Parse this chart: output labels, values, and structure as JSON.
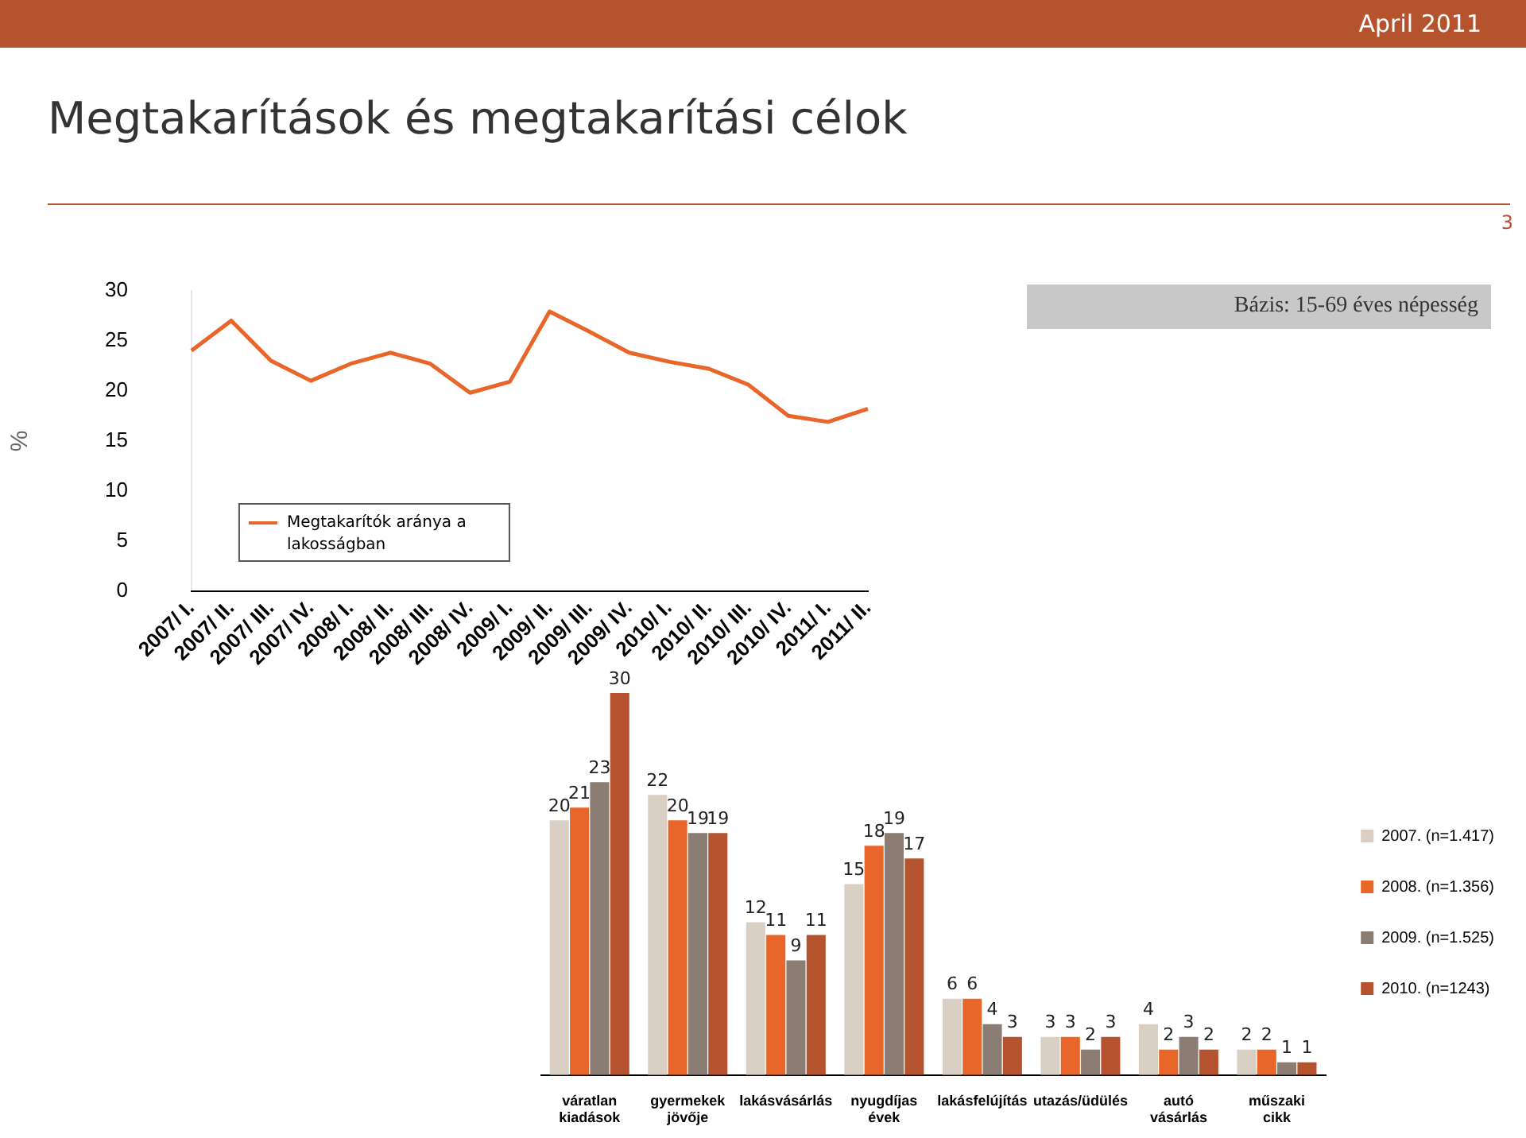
{
  "chart_data": [
    {
      "type": "line",
      "title": "Megtakarítások és megtakarítási célok",
      "ylabel": "%",
      "categories": [
        "2007/ I.",
        "2007/ II.",
        "2007/ III.",
        "2007/ IV.",
        "2008/ I.",
        "2008/ II.",
        "2008/ III.",
        "2008/ IV.",
        "2009/ I.",
        "2009/ II.",
        "2009/ III.",
        "2009/ IV.",
        "2010/ I.",
        "2010/ II.",
        "2010/ III.",
        "2010/ IV.",
        "2011/ I.",
        "2011/ II."
      ],
      "series": [
        {
          "name": "Megtakarítók aránya a lakosságban",
          "color": "#e8662a",
          "values": [
            24,
            27,
            23,
            21,
            22.7,
            23.8,
            22.7,
            19.8,
            20.9,
            27.9,
            25.9,
            23.8,
            22.9,
            22.2,
            20.6,
            17.5,
            16.9,
            18.2
          ]
        }
      ],
      "ylim": [
        0,
        30
      ],
      "yticks": [
        0,
        5,
        10,
        15,
        20,
        25,
        30
      ],
      "grid": false,
      "legend": "bottom left",
      "marker": "none",
      "line_style": "solid",
      "annotations": [
        "Bázis: 15-69 éves népesség",
        "April 2011",
        "3"
      ]
    },
    {
      "type": "bar",
      "categories": [
        "váratlan kiadások",
        "gyermekek jövője",
        "lakásvásárlás",
        "nyugdíjas évek",
        "lakásfelújítás",
        "utazás/üdülés",
        "autó vásárlás",
        "műszaki cikk"
      ],
      "series": [
        {
          "name": "2007. (n=1.417)",
          "color": "#d9cfc4",
          "values": [
            20,
            22,
            12,
            15,
            6,
            3,
            4,
            2
          ]
        },
        {
          "name": "2008. (n=1.356)",
          "color": "#e8662a",
          "values": [
            21,
            20,
            11,
            18,
            6,
            3,
            2,
            2
          ]
        },
        {
          "name": "2009. (n=1.525)",
          "color": "#8c7d74",
          "values": [
            23,
            19,
            9,
            19,
            4,
            2,
            3,
            1
          ]
        },
        {
          "name": "2010. (n=1243)",
          "color": "#b5532f",
          "values": [
            30,
            19,
            11,
            17,
            3,
            3,
            2,
            1
          ]
        }
      ],
      "data_labels": true,
      "grid": false,
      "legend": "right",
      "tick_labels": "x"
    }
  ]
}
